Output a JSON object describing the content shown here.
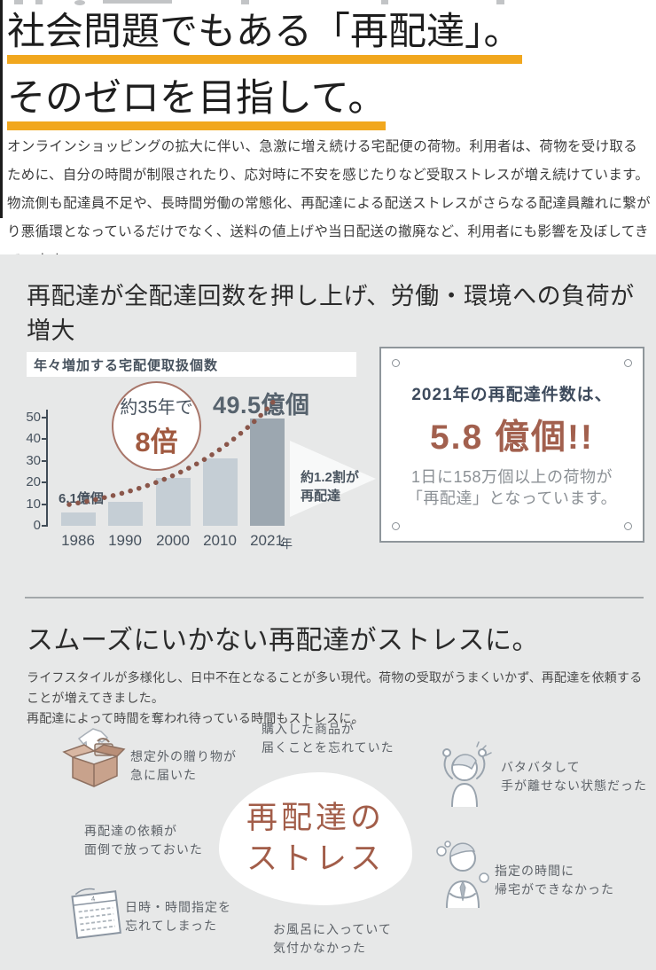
{
  "colors": {
    "accent_yellow": "#f1a71e",
    "accent_brown": "#a0593f",
    "slate_text": "#47525e",
    "bar_light": "#c5ced5",
    "bar_dark": "#9ca7b0",
    "section_bg": "#e7e8e8",
    "info_big_number": "#a2604e"
  },
  "header": {
    "title_line1": "社会問題でもある「再配達」。",
    "title_line2": "そのゼロを目指して。",
    "intro": "オンラインショッピングの拡大に伴い、急激に増え続ける宅配便の荷物。利用者は、荷物を受け取るために、自分の時間が制限されたり、応対時に不安を感じたりなど受取ストレスが増え続けています。物流側も配達員不足や、長時間労働の常態化、再配達による配送ストレスがさらなる配達員離れに繋がり悪循環となっているだけでなく、送料の値上げや当日配送の撤廃など、利用者にも影響を及ぼしてきています。"
  },
  "section1": {
    "heading": "再配達が全配達回数を押し上げ、労働・環境への負荷が増大",
    "info_box": {
      "line1": "2021年の再配達件数は、",
      "big_number": "5.8 億個!!",
      "desc_line1": "1日に158万個以上の荷物が",
      "desc_line2": "「再配達」となっています。"
    }
  },
  "chart_data": {
    "type": "bar",
    "title": "年々増加する宅配便取扱個数",
    "categories": [
      "1986",
      "1990",
      "2000",
      "2010",
      "2021"
    ],
    "values": [
      6.1,
      11,
      22,
      31,
      49.5
    ],
    "unit": "億個",
    "xlabel_suffix": "年",
    "ylim": [
      0,
      50
    ],
    "yticks": [
      0,
      10,
      20,
      30,
      40,
      50
    ],
    "bar_colors": [
      "#c5ced5",
      "#c5ced5",
      "#c5ced5",
      "#c5ced5",
      "#9ca7b0"
    ],
    "grid": false,
    "annotations": {
      "first_bar_label": "6.1億個",
      "last_bar_label": "49.5億個",
      "growth_circle_line1": "約35年で",
      "growth_circle_line2": "8倍",
      "arrow_line1": "約1.2割が",
      "arrow_line2": "再配達",
      "trend_line": "dotted rising curve from 1986 to 2021"
    }
  },
  "section2": {
    "heading": "スムーズにいかない再配達がストレスに。",
    "body_line1": "ライフスタイルが多様化し、日中不在となることが多い現代。荷物の受取がうまくいかず、再配達を依頼することが増えてきました。",
    "body_line2": "再配達によって時間を奪われ待っている時間もストレスに。",
    "center_line1": "再配達の",
    "center_line2": "ストレス",
    "stress_items": [
      {
        "line1": "想定外の贈り物が",
        "line2": "急に届いた"
      },
      {
        "line1": "購入した商品が",
        "line2": "届くことを忘れていた"
      },
      {
        "line1": "再配達の依頼が",
        "line2": "面倒で放っておいた"
      },
      {
        "line1": "日時・時間指定を",
        "line2": "忘れてしまった"
      },
      {
        "line1": "お風呂に入っていて",
        "line2": "気付かなかった"
      },
      {
        "line1": "バタバタして",
        "line2": "手が離せない状態だった"
      },
      {
        "line1": "指定の時間に",
        "line2": "帰宅ができなかった"
      }
    ]
  }
}
